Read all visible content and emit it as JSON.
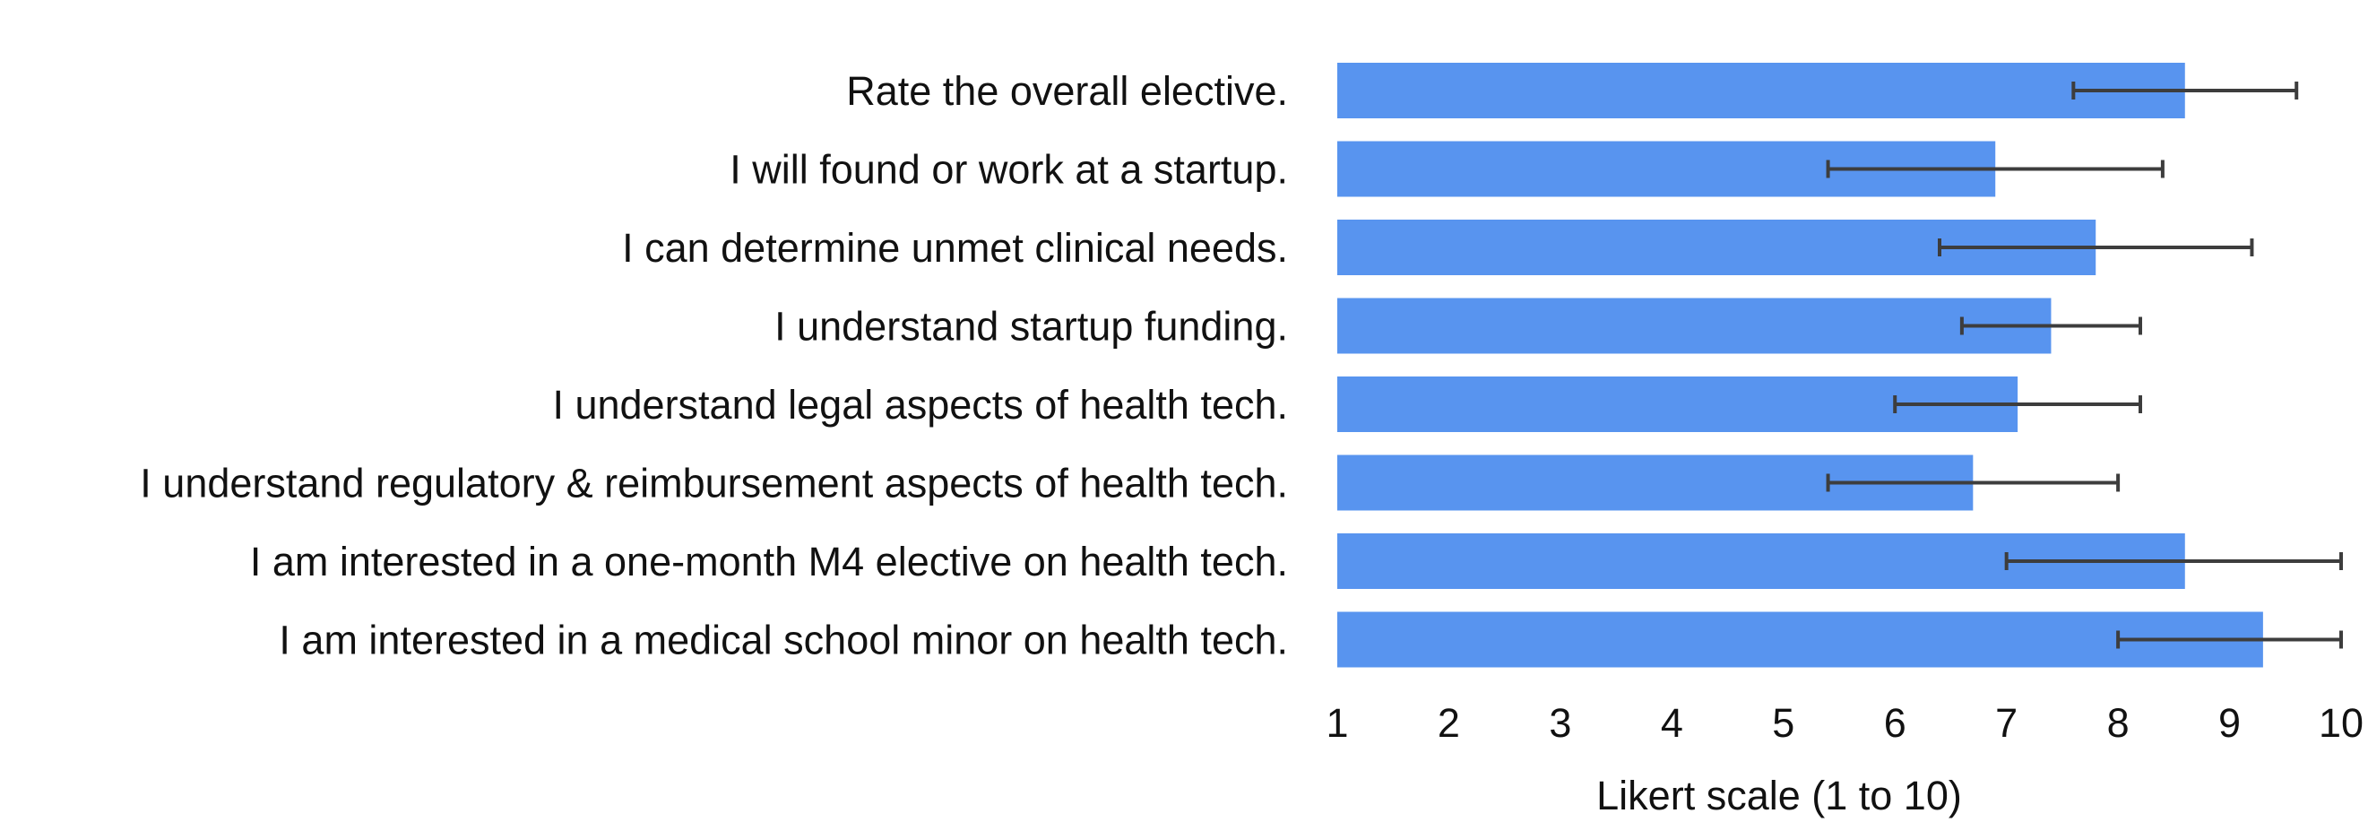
{
  "chart_data": {
    "type": "bar",
    "orientation": "horizontal",
    "categories": [
      "Rate the overall elective.",
      "I will found or work at a startup.",
      "I can determine unmet clinical needs.",
      "I understand startup funding.",
      "I understand legal aspects of health tech.",
      "I understand regulatory & reimbursement aspects of health tech.",
      "I am interested in a one-month M4 elective on health tech.",
      "I am interested in a medical school minor on health tech."
    ],
    "values": [
      8.6,
      6.9,
      7.8,
      7.4,
      7.1,
      6.7,
      8.6,
      9.3
    ],
    "error_low": [
      7.6,
      5.4,
      6.4,
      6.6,
      6.0,
      5.4,
      7.0,
      8.0
    ],
    "error_high": [
      9.6,
      8.4,
      9.2,
      8.2,
      8.2,
      8.0,
      10.0,
      10.0
    ],
    "xlabel": "Likert scale (1 to 10)",
    "xlim": [
      1,
      10
    ],
    "xticks": [
      "1",
      "2",
      "3",
      "4",
      "5",
      "6",
      "7",
      "8",
      "9",
      "10"
    ],
    "grid": false,
    "colors": {
      "bar": "#5894EF",
      "error_bar": "#3d3d3d"
    }
  }
}
